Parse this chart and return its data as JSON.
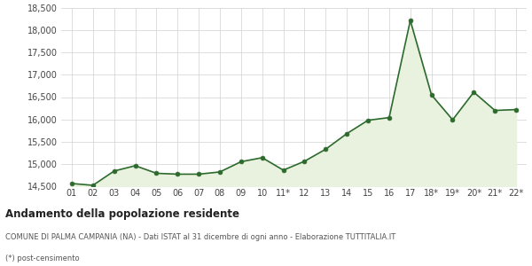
{
  "x_labels": [
    "01",
    "02",
    "03",
    "04",
    "05",
    "06",
    "07",
    "08",
    "09",
    "10",
    "11*",
    "12",
    "13",
    "14",
    "15",
    "16",
    "17",
    "18*",
    "19*",
    "20*",
    "21*",
    "22*"
  ],
  "y_values": [
    14560,
    14520,
    14840,
    14960,
    14790,
    14770,
    14770,
    14820,
    15050,
    15140,
    14860,
    15060,
    15330,
    15680,
    15980,
    16040,
    18220,
    16550,
    15990,
    16610,
    16200,
    16220
  ],
  "line_color": "#2d6a2d",
  "fill_color": "#e9f2de",
  "marker_color": "#2d6a2d",
  "bg_color": "#ffffff",
  "grid_color": "#d0d0d0",
  "title": "Andamento della popolazione residente",
  "subtitle": "COMUNE DI PALMA CAMPANIA (NA) - Dati ISTAT al 31 dicembre di ogni anno - Elaborazione TUTTITALIA.IT",
  "footnote": "(*) post-censimento",
  "ylim_min": 14500,
  "ylim_max": 18500,
  "yticks": [
    14500,
    15000,
    15500,
    16000,
    16500,
    17000,
    17500,
    18000,
    18500
  ]
}
